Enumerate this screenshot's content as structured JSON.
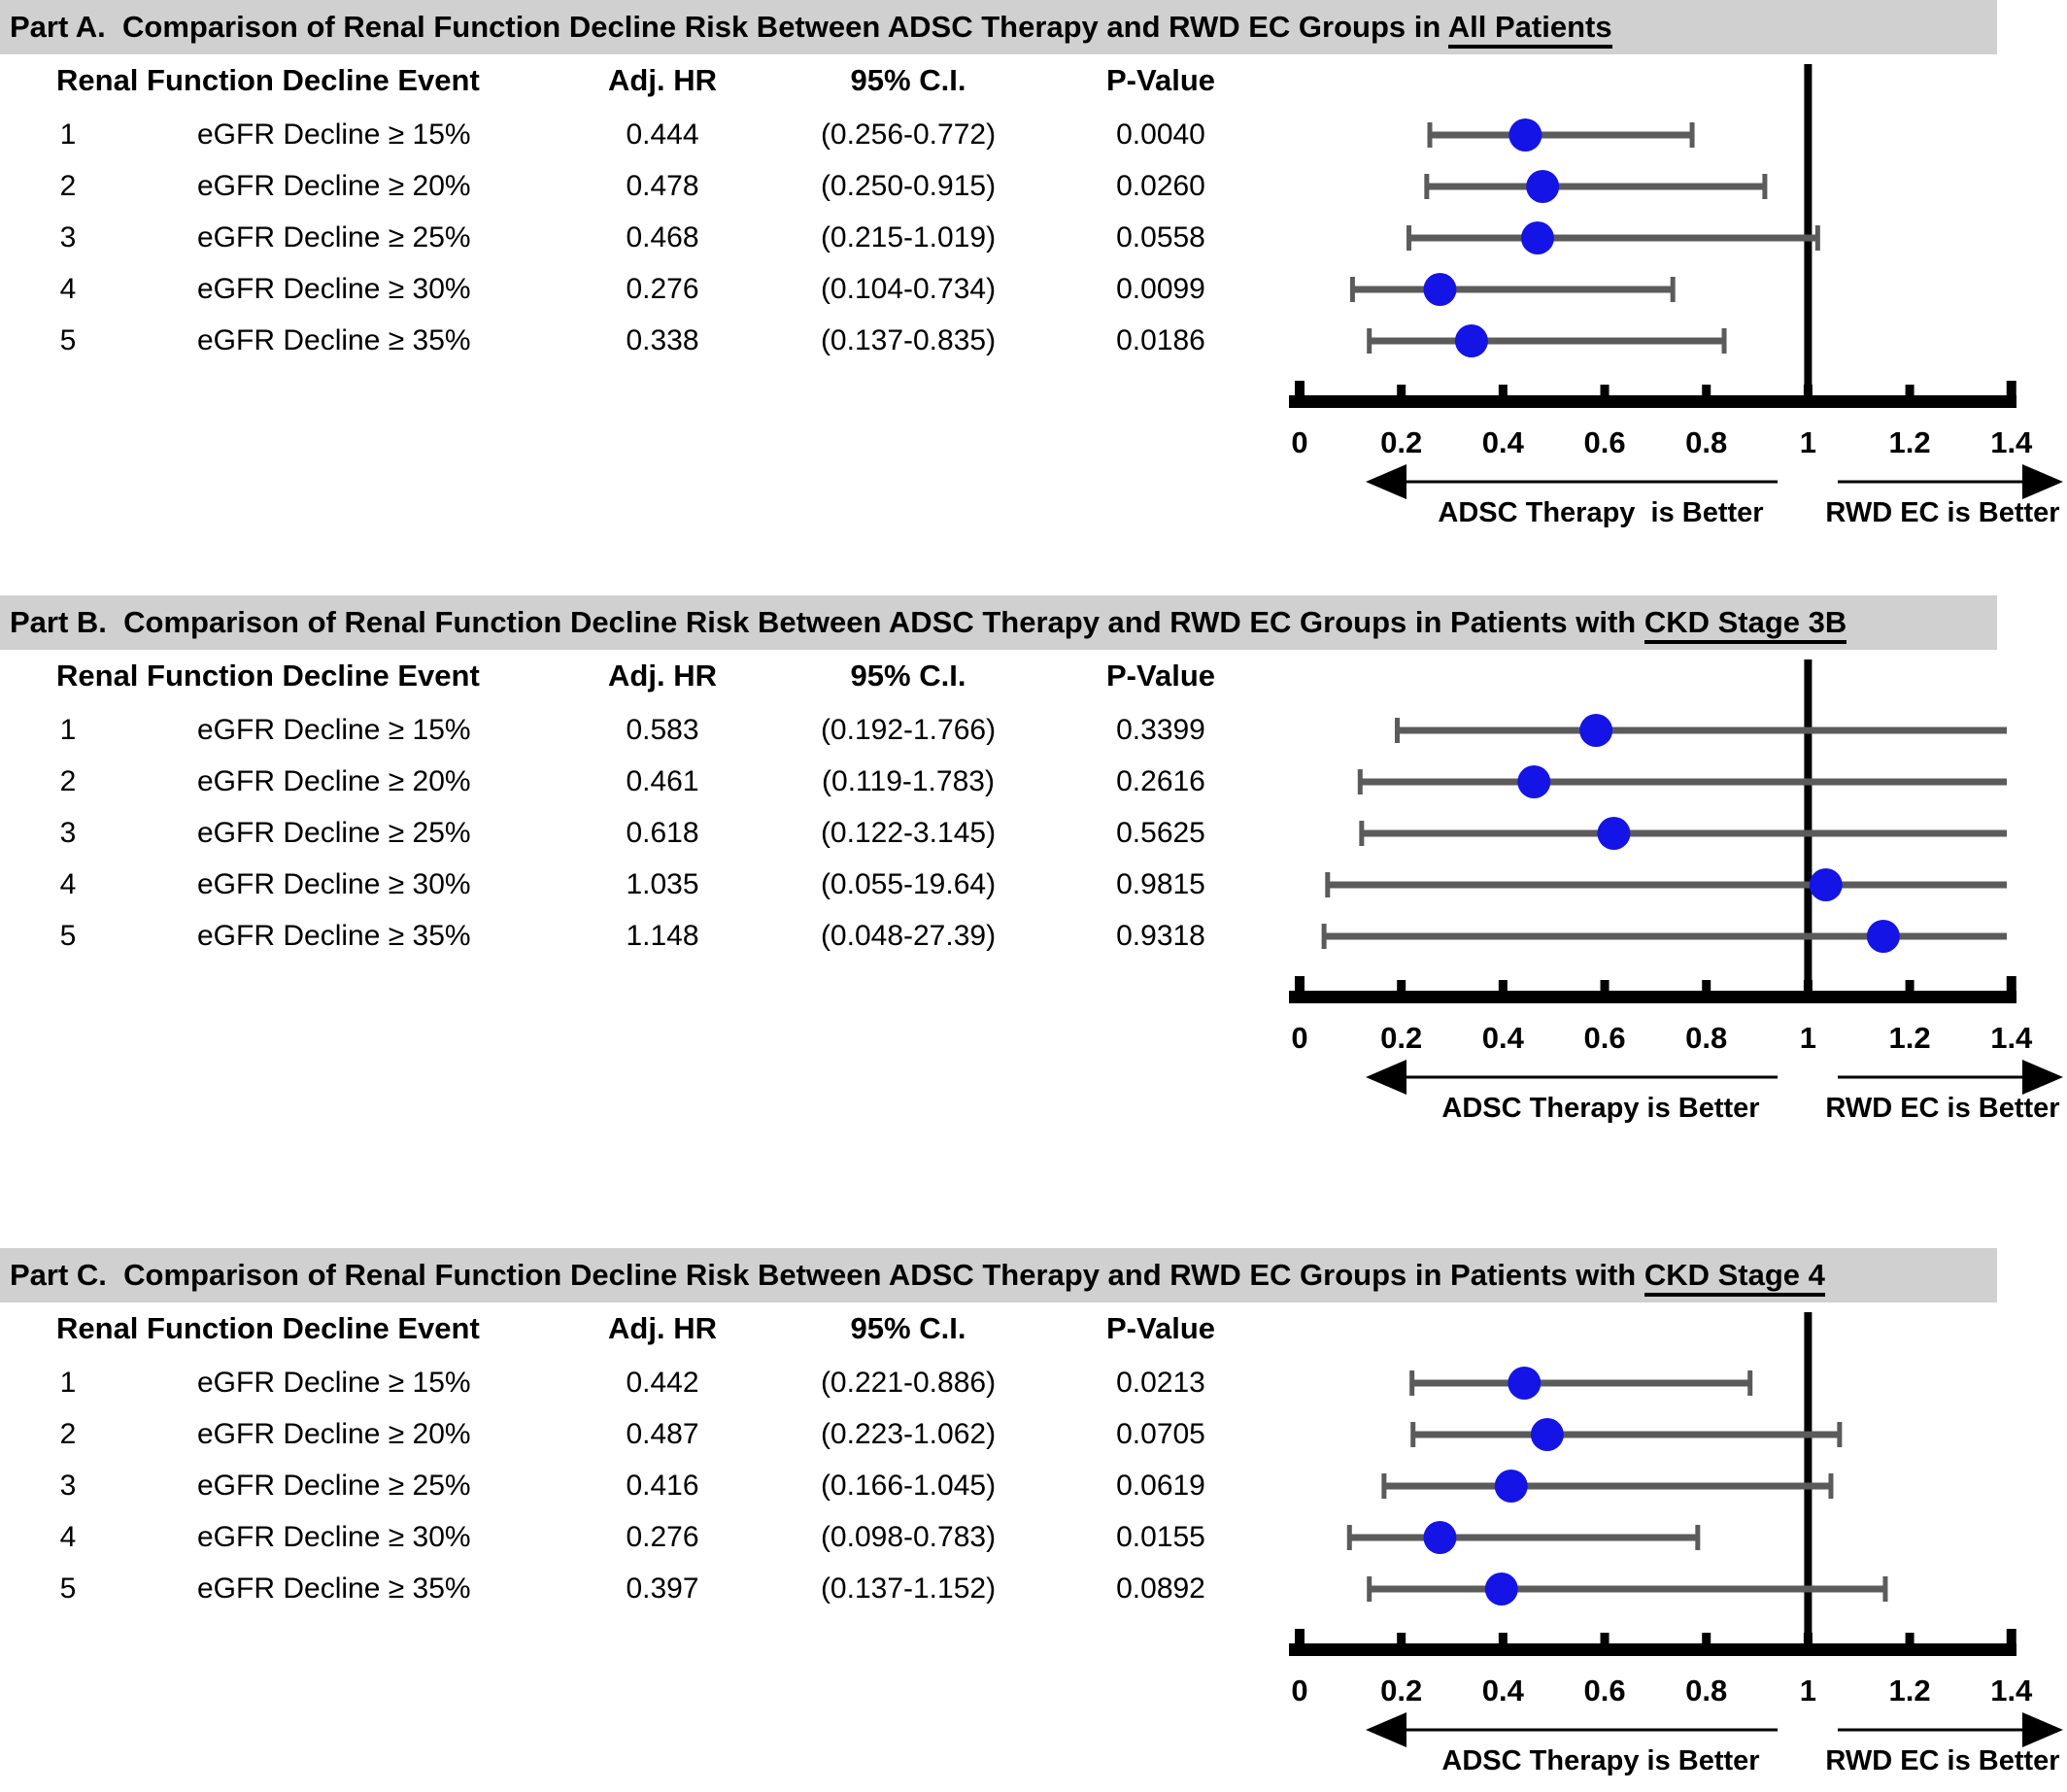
{
  "colors": {
    "title_band": "#D0D0D0",
    "marker_blue": "#1414E6",
    "ci_gray": "#5B5B5B",
    "axis_black": "#000000"
  },
  "columns": [
    "Renal Function Decline Event",
    "Adj. HR",
    "95% C.I.",
    "P-Value"
  ],
  "axis": {
    "min": 0,
    "max": 1.4,
    "tick_labels": [
      "0",
      "0.2",
      "0.4",
      "0.6",
      "0.8",
      "1",
      "1.2",
      "1.4"
    ],
    "tick_values": [
      0,
      0.2,
      0.4,
      0.6,
      0.8,
      1,
      1.2,
      1.4
    ],
    "reference_value": 1,
    "grid": false
  },
  "chart_data": [
    {
      "type": "scatter",
      "subtype": "forest-plot",
      "title_main": "Part A.  Comparison of Renal Function Decline Risk Between ADSC Therapy and RWD EC Groups in ",
      "title_underline": "All Patients",
      "left_arrow_label": "ADSC Therapy  is Better",
      "right_arrow_label": "RWD EC is Better",
      "xlim": [
        0,
        1.45
      ],
      "reference_line": 1,
      "rows": [
        {
          "no": "1",
          "event": "eGFR Decline ≥ 15%",
          "adj_hr": "0.444",
          "ci": "(0.256-0.772)",
          "p": "0.0040",
          "hr": 0.444,
          "lo": 0.256,
          "hi": 0.772
        },
        {
          "no": "2",
          "event": "eGFR Decline ≥ 20%",
          "adj_hr": "0.478",
          "ci": "(0.250-0.915)",
          "p": "0.0260",
          "hr": 0.478,
          "lo": 0.25,
          "hi": 0.915
        },
        {
          "no": "3",
          "event": "eGFR Decline ≥ 25%",
          "adj_hr": "0.468",
          "ci": "(0.215-1.019)",
          "p": "0.0558",
          "hr": 0.468,
          "lo": 0.215,
          "hi": 1.019
        },
        {
          "no": "4",
          "event": "eGFR Decline ≥ 30%",
          "adj_hr": "0.276",
          "ci": "(0.104-0.734)",
          "p": "0.0099",
          "hr": 0.276,
          "lo": 0.104,
          "hi": 0.734
        },
        {
          "no": "5",
          "event": "eGFR Decline ≥ 35%",
          "adj_hr": "0.338",
          "ci": "(0.137-0.835)",
          "p": "0.0186",
          "hr": 0.338,
          "lo": 0.137,
          "hi": 0.835
        }
      ]
    },
    {
      "type": "scatter",
      "subtype": "forest-plot",
      "title_main": "Part B.  Comparison of Renal Function Decline Risk Between ADSC Therapy and RWD EC Groups in Patients with ",
      "title_underline": "CKD Stage 3B",
      "left_arrow_label": "ADSC Therapy is Better",
      "right_arrow_label": "RWD EC is Better",
      "xlim": [
        0,
        1.45
      ],
      "reference_line": 1,
      "rows": [
        {
          "no": "1",
          "event": "eGFR Decline ≥ 15%",
          "adj_hr": "0.583",
          "ci": "(0.192-1.766)",
          "p": "0.3399",
          "hr": 0.583,
          "lo": 0.192,
          "hi": 1.766
        },
        {
          "no": "2",
          "event": "eGFR Decline ≥ 20%",
          "adj_hr": "0.461",
          "ci": "(0.119-1.783)",
          "p": "0.2616",
          "hr": 0.461,
          "lo": 0.119,
          "hi": 1.783
        },
        {
          "no": "3",
          "event": "eGFR Decline ≥ 25%",
          "adj_hr": "0.618",
          "ci": "(0.122-3.145)",
          "p": "0.5625",
          "hr": 0.618,
          "lo": 0.122,
          "hi": 3.145
        },
        {
          "no": "4",
          "event": "eGFR Decline ≥ 30%",
          "adj_hr": "1.035",
          "ci": "(0.055-19.64)",
          "p": "0.9815",
          "hr": 1.035,
          "lo": 0.055,
          "hi": 19.64
        },
        {
          "no": "5",
          "event": "eGFR Decline ≥ 35%",
          "adj_hr": "1.148",
          "ci": "(0.048-27.39)",
          "p": "0.9318",
          "hr": 1.148,
          "lo": 0.048,
          "hi": 27.39
        }
      ]
    },
    {
      "type": "scatter",
      "subtype": "forest-plot",
      "title_main": "Part C.  Comparison of Renal Function Decline Risk Between ADSC Therapy and RWD EC Groups in Patients with ",
      "title_underline": "CKD Stage 4",
      "left_arrow_label": "ADSC Therapy is Better",
      "right_arrow_label": "RWD EC is Better",
      "xlim": [
        0,
        1.45
      ],
      "reference_line": 1,
      "rows": [
        {
          "no": "1",
          "event": "eGFR Decline ≥ 15%",
          "adj_hr": "0.442",
          "ci": "(0.221-0.886)",
          "p": "0.0213",
          "hr": 0.442,
          "lo": 0.221,
          "hi": 0.886
        },
        {
          "no": "2",
          "event": "eGFR Decline ≥ 20%",
          "adj_hr": "0.487",
          "ci": "(0.223-1.062)",
          "p": "0.0705",
          "hr": 0.487,
          "lo": 0.223,
          "hi": 1.062
        },
        {
          "no": "3",
          "event": "eGFR Decline ≥ 25%",
          "adj_hr": "0.416",
          "ci": "(0.166-1.045)",
          "p": "0.0619",
          "hr": 0.416,
          "lo": 0.166,
          "hi": 1.045
        },
        {
          "no": "4",
          "event": "eGFR Decline ≥ 30%",
          "adj_hr": "0.276",
          "ci": "(0.098-0.783)",
          "p": "0.0155",
          "hr": 0.276,
          "lo": 0.098,
          "hi": 0.783
        },
        {
          "no": "5",
          "event": "eGFR Decline ≥ 35%",
          "adj_hr": "0.397",
          "ci": "(0.137-1.152)",
          "p": "0.0892",
          "hr": 0.397,
          "lo": 0.137,
          "hi": 1.152
        }
      ]
    }
  ]
}
